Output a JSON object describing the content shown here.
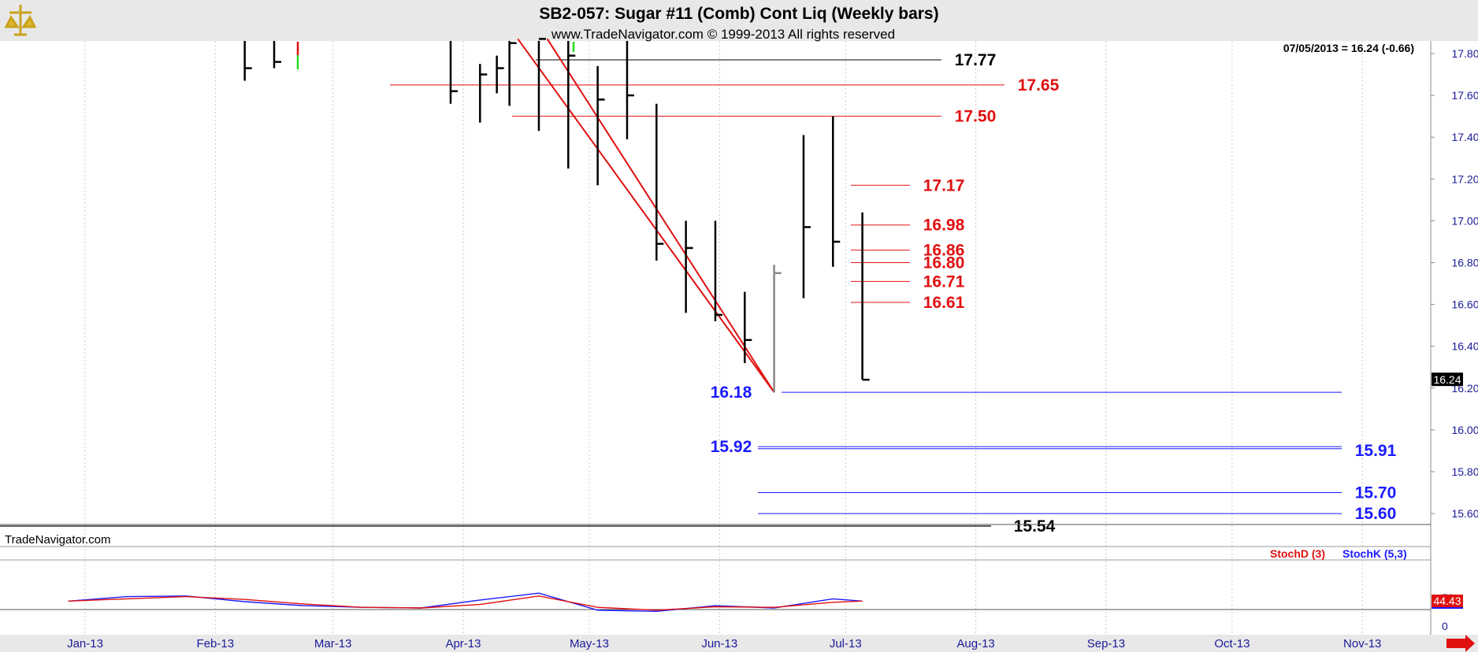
{
  "header": {
    "title": "SB2-057:  Sugar #11 (Comb) Cont Liq  (Weekly bars)",
    "copyright": "www.TradeNavigator.com © 1999-2013 All rights reserved"
  },
  "info": {
    "last_quote": "07/05/2013 = 16.24 (-0.66)"
  },
  "watermark": "TradeNavigator.com",
  "colors": {
    "bars": "#000000",
    "levels_red": "#e01010",
    "levels_blue": "#1a1aff",
    "grid": "#c8c8c8",
    "header_bg": "#e8e8e8",
    "axis_text": "#1a1a99"
  },
  "chart_data": [
    {
      "type": "ohlc",
      "title": "SB2-057:  Sugar #11 (Comb) Cont Liq  (Weekly bars)",
      "x_tick_labels": [
        "Jan-13",
        "Feb-13",
        "Mar-13",
        "Apr-13",
        "May-13",
        "Jun-13",
        "Jul-13",
        "Aug-13",
        "Sep-13",
        "Oct-13",
        "Nov-13"
      ],
      "y_tick_labels": [
        "17.80",
        "17.60",
        "17.40",
        "17.20",
        "17.00",
        "16.80",
        "16.60",
        "16.40",
        "16.20",
        "16.00",
        "15.80",
        "15.60"
      ],
      "ylim": [
        15.5,
        17.87
      ],
      "last_price_tag": "16.24",
      "bars": [
        {
          "week": "2013-02-08",
          "high": 17.88,
          "low": 17.67,
          "close": 17.73
        },
        {
          "week": "2013-02-15",
          "high": 17.88,
          "low": 17.73,
          "close": 17.76
        },
        {
          "week": "2013-03-29",
          "high": 17.88,
          "low": 17.56,
          "close": 17.62
        },
        {
          "week": "2013-04-05",
          "high": 17.75,
          "low": 17.47,
          "close": 17.7
        },
        {
          "week": "2013-04-09",
          "high": 17.79,
          "low": 17.61,
          "close": 17.73
        },
        {
          "week": "2013-04-12",
          "high": 17.88,
          "low": 17.55,
          "close": 17.85
        },
        {
          "week": "2013-04-19",
          "high": 17.88,
          "low": 17.43,
          "close": 17.87
        },
        {
          "week": "2013-04-26",
          "high": 17.88,
          "low": 17.25,
          "close": 17.79
        },
        {
          "week": "2013-05-03",
          "high": 17.74,
          "low": 17.17,
          "close": 17.58
        },
        {
          "week": "2013-05-10",
          "high": 17.88,
          "low": 17.39,
          "close": 17.6
        },
        {
          "week": "2013-05-17",
          "high": 17.56,
          "low": 16.81,
          "close": 16.89
        },
        {
          "week": "2013-05-24",
          "high": 17.0,
          "low": 16.56,
          "close": 16.87
        },
        {
          "week": "2013-05-31",
          "high": 17.0,
          "low": 16.52,
          "close": 16.55
        },
        {
          "week": "2013-06-07",
          "high": 16.66,
          "low": 16.32,
          "close": 16.43
        },
        {
          "week": "2013-06-14",
          "high": 16.79,
          "low": 16.18,
          "close": 16.75
        },
        {
          "week": "2013-06-21",
          "high": 17.41,
          "low": 16.63,
          "close": 16.97
        },
        {
          "week": "2013-06-28",
          "high": 17.5,
          "low": 16.78,
          "close": 16.9
        },
        {
          "week": "2013-07-05",
          "high": 17.04,
          "low": 16.24,
          "close": 16.24
        }
      ],
      "levels": [
        {
          "label": "17.77",
          "value": 17.77,
          "color": "black"
        },
        {
          "label": "17.65",
          "value": 17.65,
          "color": "red"
        },
        {
          "label": "17.50",
          "value": 17.5,
          "color": "red"
        },
        {
          "label": "17.17",
          "value": 17.17,
          "color": "red"
        },
        {
          "label": "16.98",
          "value": 16.98,
          "color": "red"
        },
        {
          "label": "16.86",
          "value": 16.86,
          "color": "red"
        },
        {
          "label": "16.80",
          "value": 16.8,
          "color": "red"
        },
        {
          "label": "16.71",
          "value": 16.71,
          "color": "red"
        },
        {
          "label": "16.61",
          "value": 16.61,
          "color": "red"
        },
        {
          "label": "16.18",
          "value": 16.18,
          "color": "blue"
        },
        {
          "label": "15.92",
          "value": 15.92,
          "color": "blue"
        },
        {
          "label": "15.91",
          "value": 15.91,
          "color": "blue"
        },
        {
          "label": "15.70",
          "value": 15.7,
          "color": "blue"
        },
        {
          "label": "15.60",
          "value": 15.6,
          "color": "blue"
        },
        {
          "label": "15.54",
          "value": 15.54,
          "color": "black"
        }
      ],
      "trendlines": [
        {
          "from": {
            "week": "2013-04-14",
            "value": 17.87
          },
          "to": {
            "week": "2013-06-14",
            "value": 16.18
          }
        },
        {
          "from": {
            "week": "2013-04-21",
            "value": 17.87
          },
          "to": {
            "week": "2013-06-14",
            "value": 16.18
          }
        }
      ]
    },
    {
      "type": "line",
      "legend": [
        {
          "name": "StochD (3)",
          "color": "red"
        },
        {
          "name": "StochK (5,3)",
          "color": "blue"
        }
      ],
      "y_tick_labels": [
        "50",
        "0"
      ],
      "last_value_tag": "44.43",
      "x": [
        "2012-12-28",
        "2013-01-11",
        "2013-01-25",
        "2013-02-08",
        "2013-02-22",
        "2013-03-08",
        "2013-03-22",
        "2013-04-05",
        "2013-04-19",
        "2013-05-03",
        "2013-05-17",
        "2013-05-31",
        "2013-06-14",
        "2013-06-28",
        "2013-07-05"
      ],
      "series": [
        {
          "name": "StochK (5,3)",
          "values": [
            44,
            52,
            53,
            43,
            36,
            33,
            32,
            46,
            58,
            28,
            26,
            36,
            32,
            48,
            44
          ]
        },
        {
          "name": "StochD (3)",
          "values": [
            44,
            48,
            52,
            47,
            39,
            33,
            32,
            38,
            53,
            33,
            28,
            34,
            33,
            42,
            44
          ]
        }
      ]
    }
  ]
}
